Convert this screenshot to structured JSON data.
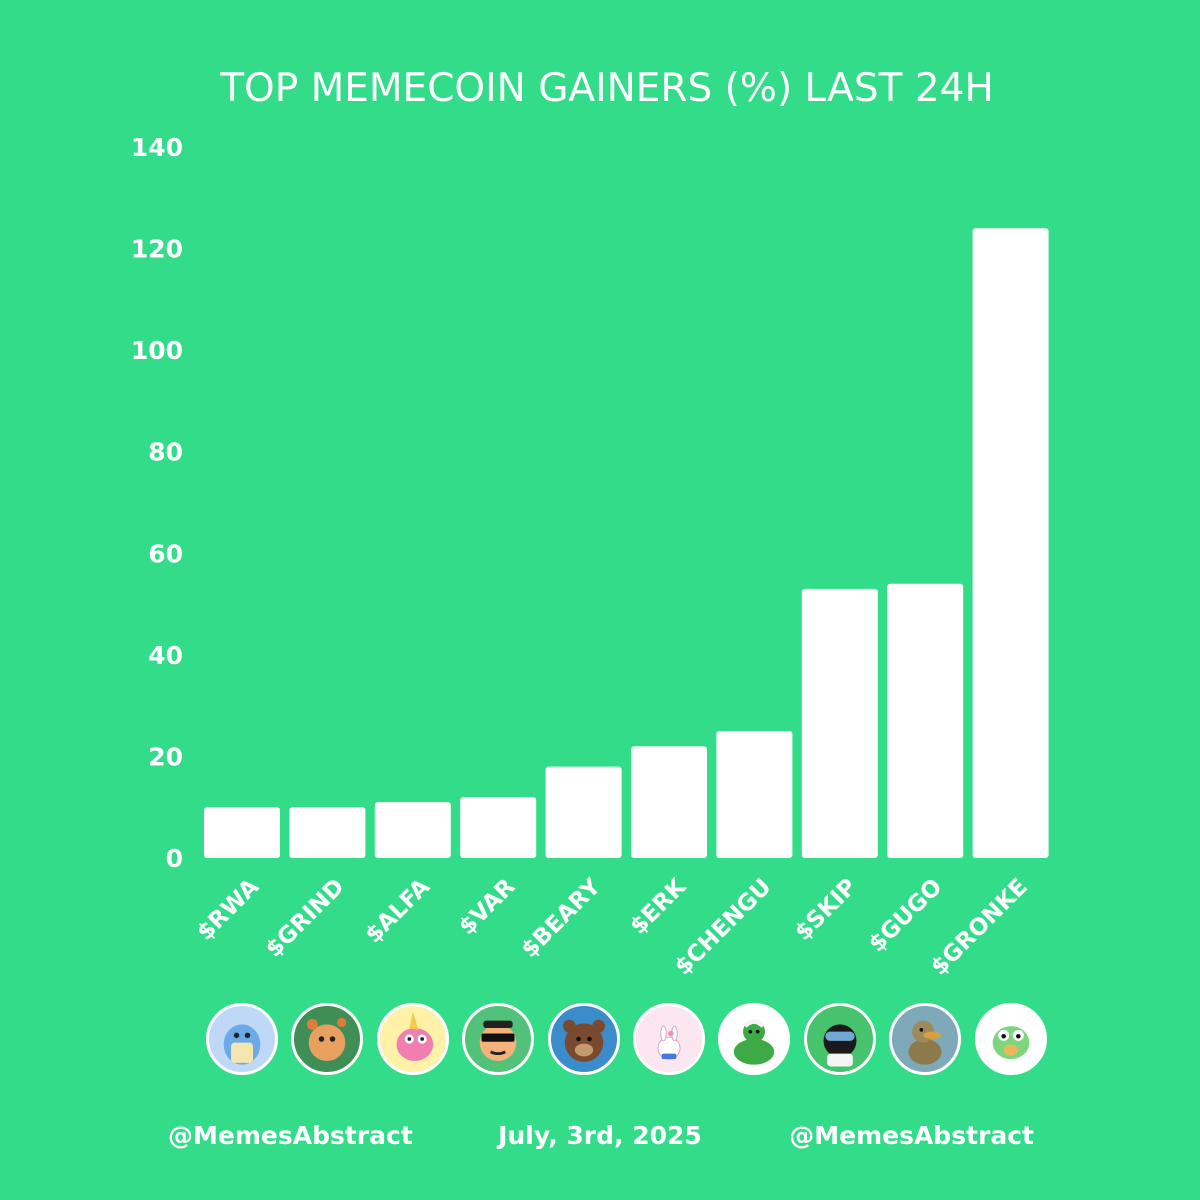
{
  "chart_data": {
    "type": "bar",
    "title": "TOP MEMECOIN GAINERS (%) LAST 24H",
    "xlabel": "",
    "ylabel": "",
    "ylim": [
      0,
      140
    ],
    "yticks": [
      0,
      20,
      40,
      60,
      80,
      100,
      120,
      140
    ],
    "grid": false,
    "categories": [
      "$RWA",
      "$GRIND",
      "$ALFA",
      "$VAR",
      "$BEARY",
      "$ERK",
      "$CHENGU",
      "$SKIP",
      "$GUGO",
      "$GRONKE"
    ],
    "values": [
      10,
      10,
      11,
      12,
      18,
      22,
      25,
      53,
      54,
      124
    ],
    "colors": {
      "background": "#32DC89",
      "bar": "#FFFFFF",
      "text": "#FFFFFF"
    }
  },
  "avatars": [
    {
      "icon": "whale-icon",
      "bg": "#BFD8F5",
      "fg": "#6CA9E8"
    },
    {
      "icon": "hamster-icon",
      "bg": "#3E8E55",
      "fg": "#E8A060"
    },
    {
      "icon": "unicorn-icon",
      "bg": "#FFF2A8",
      "fg": "#F07FB0"
    },
    {
      "icon": "sunglasses-man-icon",
      "bg": "#52C27A",
      "fg": "#F3B27A"
    },
    {
      "icon": "bear-icon",
      "bg": "#3A8CCB",
      "fg": "#7A4A2E"
    },
    {
      "icon": "bunny-icon",
      "bg": "#FCE6F0",
      "fg": "#FFFFFF"
    },
    {
      "icon": "muscle-pepe-icon",
      "bg": "#FFFFFF",
      "fg": "#3DAA45"
    },
    {
      "icon": "goggles-character-icon",
      "bg": "#46C36C",
      "fg": "#1A1A1A"
    },
    {
      "icon": "duck-icon",
      "bg": "#7EA9B8",
      "fg": "#8C7A4A"
    },
    {
      "icon": "frog-icon",
      "bg": "#FFFFFF",
      "fg": "#7DD67D"
    }
  ],
  "footer": {
    "left": "@MemesAbstract",
    "center": "July, 3rd, 2025",
    "right": "@MemesAbstract"
  }
}
